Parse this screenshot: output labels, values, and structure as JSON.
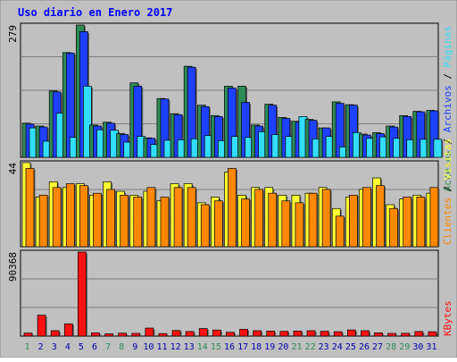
{
  "title": "Uso diario en Enero 2017",
  "colors": {
    "background": "#c0c0c0",
    "title": "#0000ff",
    "accesos": "#2e8b57",
    "archivos": "#1e40ff",
    "paginas": "#33ddff",
    "clientes": "#ff8800",
    "visitas": "#ffff33",
    "kbytes": "#ff1111",
    "weekend_label": "#2e8b57",
    "weekday_label": "#0000aa"
  },
  "chart_data": [
    {
      "type": "bar",
      "title": "Uso diario en Enero 2017",
      "y_tick_label": "279",
      "ylim": [
        0,
        279
      ],
      "categories": [
        "1",
        "2",
        "3",
        "4",
        "5",
        "6",
        "7",
        "8",
        "9",
        "10",
        "11",
        "12",
        "13",
        "14",
        "15",
        "16",
        "17",
        "18",
        "19",
        "20",
        "21",
        "22",
        "23",
        "24",
        "25",
        "26",
        "27",
        "28",
        "29",
        "30",
        "31"
      ],
      "weekend_days": [
        "1",
        "7",
        "8",
        "14",
        "15",
        "21",
        "22",
        "28",
        "29"
      ],
      "series": [
        {
          "name": "Accesos",
          "color": "#2e8b57",
          "values": [
            72,
            66,
            140,
            221,
            279,
            68,
            74,
            50,
            157,
            41,
            124,
            92,
            192,
            110,
            88,
            150,
            150,
            68,
            112,
            84,
            76,
            80,
            62,
            117,
            111,
            49,
            52,
            66,
            88,
            97,
            99
          ]
        },
        {
          "name": "Archivos",
          "color": "#1e40ff",
          "values": [
            70,
            64,
            138,
            220,
            265,
            66,
            72,
            48,
            150,
            40,
            123,
            90,
            190,
            107,
            86,
            146,
            116,
            66,
            110,
            82,
            74,
            78,
            62,
            114,
            110,
            47,
            50,
            64,
            86,
            96,
            98
          ]
        },
        {
          "name": "Páginas",
          "color": "#33ddff",
          "values": [
            62,
            34,
            93,
            42,
            150,
            58,
            57,
            32,
            44,
            27,
            36,
            37,
            39,
            46,
            35,
            44,
            42,
            54,
            48,
            44,
            86,
            39,
            44,
            22,
            52,
            40,
            43,
            40,
            37,
            38,
            38
          ]
        }
      ],
      "side_labels": [
        "Accesos",
        "Archivos",
        "Páginas"
      ]
    },
    {
      "type": "bar",
      "y_tick_label": "44",
      "ylim": [
        0,
        44
      ],
      "categories": [
        "1",
        "2",
        "3",
        "4",
        "5",
        "6",
        "7",
        "8",
        "9",
        "10",
        "11",
        "12",
        "13",
        "14",
        "15",
        "16",
        "17",
        "18",
        "19",
        "20",
        "21",
        "22",
        "23",
        "24",
        "25",
        "26",
        "27",
        "28",
        "29",
        "30",
        "31"
      ],
      "series": [
        {
          "name": "Visitas",
          "color": "#ffff33",
          "values": [
            44,
            26,
            34,
            31,
            33,
            27,
            34,
            29,
            27,
            29,
            24,
            33,
            33,
            23,
            26,
            39,
            27,
            31,
            31,
            27,
            27,
            28,
            31,
            20,
            26,
            30,
            36,
            22,
            25,
            27,
            28
          ]
        },
        {
          "name": "Clientes",
          "color": "#ff8800",
          "values": [
            41,
            27,
            31,
            33,
            32,
            28,
            30,
            27,
            26,
            31,
            26,
            31,
            31,
            22,
            24,
            41,
            25,
            30,
            28,
            24,
            23,
            28,
            30,
            16,
            27,
            31,
            32,
            20,
            26,
            26,
            31
          ]
        }
      ],
      "side_labels": [
        "Clientes",
        "Visitas"
      ]
    },
    {
      "type": "bar",
      "y_tick_label": "90368",
      "ylim": [
        0,
        90368
      ],
      "categories": [
        "1",
        "2",
        "3",
        "4",
        "5",
        "6",
        "7",
        "8",
        "9",
        "10",
        "11",
        "12",
        "13",
        "14",
        "15",
        "16",
        "17",
        "18",
        "19",
        "20",
        "21",
        "22",
        "23",
        "24",
        "25",
        "26",
        "27",
        "28",
        "29",
        "30",
        "31"
      ],
      "series": [
        {
          "name": "KBytes",
          "color": "#ff1111",
          "values": [
            3200,
            22500,
            5800,
            13200,
            90368,
            3500,
            2400,
            3100,
            2900,
            8600,
            2700,
            6000,
            4900,
            8100,
            6500,
            4100,
            7300,
            5800,
            5400,
            5100,
            5400,
            5800,
            5200,
            4700,
            6600,
            5800,
            3500,
            2900,
            3000,
            4900,
            4700
          ]
        }
      ],
      "side_labels": [
        "KBytes"
      ]
    }
  ]
}
